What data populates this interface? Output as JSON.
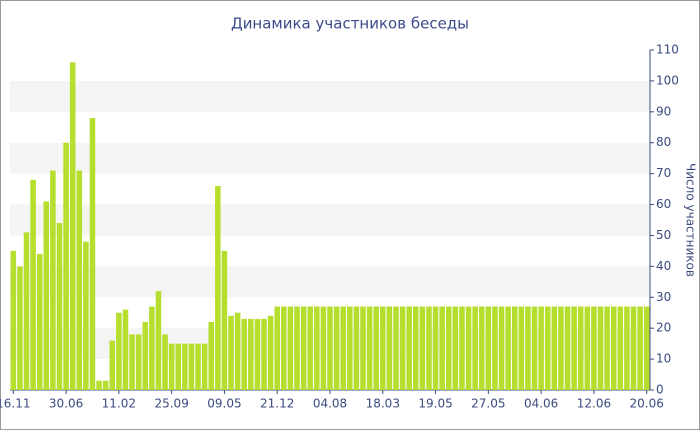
{
  "chart_data": {
    "type": "bar",
    "title": "Динамика участников беседы",
    "y_axis_label": "Число участников",
    "categories": [
      "16.11",
      null,
      null,
      null,
      null,
      null,
      null,
      null,
      "30.06",
      null,
      null,
      null,
      null,
      null,
      null,
      null,
      "11.02",
      null,
      null,
      null,
      null,
      null,
      null,
      null,
      "25.09",
      null,
      null,
      null,
      null,
      null,
      null,
      null,
      "09.05",
      null,
      null,
      null,
      null,
      null,
      null,
      null,
      "21.12",
      null,
      null,
      null,
      null,
      null,
      null,
      null,
      "04.08",
      null,
      null,
      null,
      null,
      null,
      null,
      null,
      "18.03",
      null,
      null,
      null,
      null,
      null,
      null,
      null,
      "19.05",
      null,
      null,
      null,
      null,
      null,
      null,
      null,
      "27.05",
      null,
      null,
      null,
      null,
      null,
      null,
      null,
      "04.06",
      null,
      null,
      null,
      null,
      null,
      null,
      null,
      "12.06",
      null,
      null,
      null,
      null,
      null,
      null,
      null,
      "20.06"
    ],
    "values": [
      45,
      40,
      51,
      68,
      44,
      61,
      71,
      54,
      80,
      106,
      71,
      48,
      88,
      3,
      3,
      16,
      25,
      26,
      18,
      18,
      22,
      27,
      32,
      18,
      15,
      15,
      15,
      15,
      15,
      15,
      22,
      66,
      45,
      24,
      25,
      23,
      23,
      23,
      23,
      24,
      27,
      27,
      27,
      27,
      27,
      27,
      27,
      27,
      27,
      27,
      27,
      27,
      27,
      27,
      27,
      27,
      27,
      27,
      27,
      27,
      27,
      27,
      27,
      27,
      27,
      27,
      27,
      27,
      27,
      27,
      27,
      27,
      27,
      27,
      27,
      27,
      27,
      27,
      27,
      27,
      27,
      27,
      27,
      27,
      27,
      27,
      27,
      27,
      27,
      27,
      27,
      27,
      27,
      27,
      27,
      27,
      27
    ],
    "color": "#b5de2f",
    "ylim": [
      0,
      110
    ],
    "yticks": [
      0,
      10,
      20,
      30,
      40,
      50,
      60,
      70,
      80,
      90,
      100,
      110
    ],
    "grid": true
  }
}
